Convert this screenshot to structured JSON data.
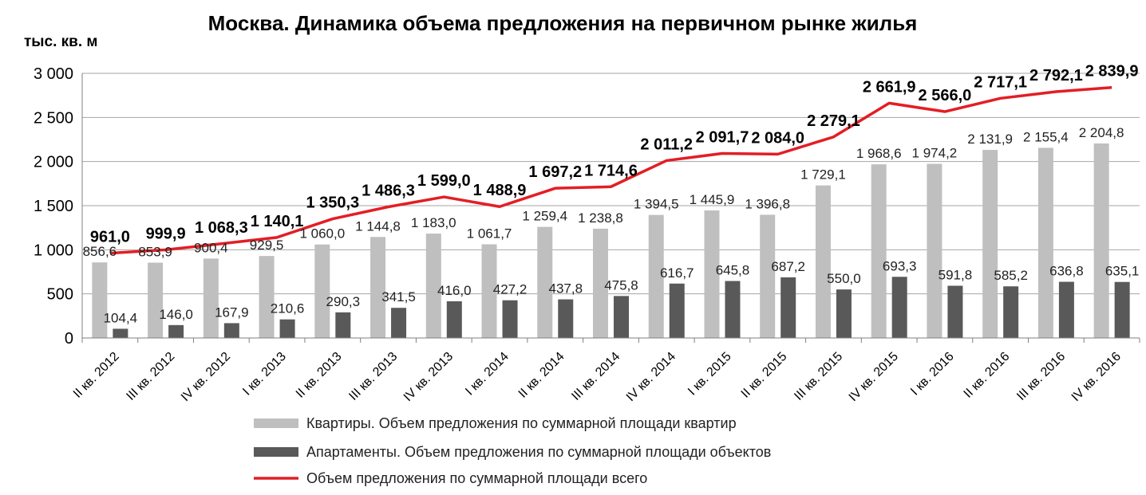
{
  "chart_data": {
    "type": "bar",
    "title": "Москва. Динамика объема предложения на первичном рынке жилья",
    "ylabel": "тыс. кв. м",
    "ylim": [
      0,
      3000
    ],
    "yticks": [
      0,
      500,
      1000,
      1500,
      2000,
      2500,
      3000
    ],
    "ytick_labels": [
      "0",
      "500",
      "1 000",
      "1 500",
      "2 000",
      "2 500",
      "3 000"
    ],
    "grid": true,
    "legend_position": "bottom",
    "categories": [
      "II кв. 2012",
      "III кв. 2012",
      "IV кв. 2012",
      "I кв. 2013",
      "II кв. 2013",
      "III кв. 2013",
      "IV кв. 2013",
      "I кв. 2014",
      "II кв. 2014",
      "III кв. 2014",
      "IV кв. 2014",
      "I кв. 2015",
      "II кв. 2015",
      "III кв. 2015",
      "IV кв. 2015",
      "I кв. 2016",
      "II кв. 2016",
      "III кв. 2016",
      "IV кв. 2016"
    ],
    "series": [
      {
        "name": "Квартиры. Объем предложения по суммарной площади  квартир",
        "type": "bar",
        "color": "#bfbfbf",
        "values": [
          856.6,
          853.9,
          900.4,
          929.5,
          1060.0,
          1144.8,
          1183.0,
          1061.7,
          1259.4,
          1238.8,
          1394.5,
          1445.9,
          1396.8,
          1729.1,
          1968.6,
          1974.2,
          2131.9,
          2155.4,
          2204.8
        ],
        "labels": [
          "856,6",
          "853,9",
          "900,4",
          "929,5",
          "1 060,0",
          "1 144,8",
          "1 183,0",
          "1 061,7",
          "1 259,4",
          "1 238,8",
          "1 394,5",
          "1 445,9",
          "1 396,8",
          "1 729,1",
          "1 968,6",
          "1 974,2",
          "2 131,9",
          "2 155,4",
          "2 204,8"
        ]
      },
      {
        "name": "Апартаменты. Объем предложения по суммарной площади  объектов",
        "type": "bar",
        "color": "#595959",
        "values": [
          104.4,
          146.0,
          167.9,
          210.6,
          290.3,
          341.5,
          416.0,
          427.2,
          437.8,
          475.8,
          616.7,
          645.8,
          687.2,
          550.0,
          693.3,
          591.8,
          585.2,
          636.8,
          635.1
        ],
        "labels": [
          "104,4",
          "146,0",
          "167,9",
          "210,6",
          "290,3",
          "341,5",
          "416,0",
          "427,2",
          "437,8",
          "475,8",
          "616,7",
          "645,8",
          "687,2",
          "550,0",
          "693,3",
          "591,8",
          "585,2",
          "636,8",
          "635,1"
        ]
      },
      {
        "name": "Объем предложения по суммарной площади  всего",
        "type": "line",
        "color": "#e31e24",
        "values": [
          961.0,
          999.9,
          1068.3,
          1140.1,
          1350.3,
          1486.3,
          1599.0,
          1488.9,
          1697.2,
          1714.6,
          2011.2,
          2091.7,
          2084.0,
          2279.1,
          2661.9,
          2566.0,
          2717.1,
          2792.1,
          2839.9
        ],
        "labels": [
          "961,0",
          "999,9",
          "1 068,3",
          "1 140,1",
          "1 350,3",
          "1 486,3",
          "1 599,0",
          "1 488,9",
          "1 697,2",
          "1 714,6",
          "2 011,2",
          "2 091,7",
          "2 084,0",
          "2 279,1",
          "2 661,9",
          "2 566,0",
          "2 717,1",
          "2 792,1",
          "2 839,9"
        ]
      }
    ]
  }
}
